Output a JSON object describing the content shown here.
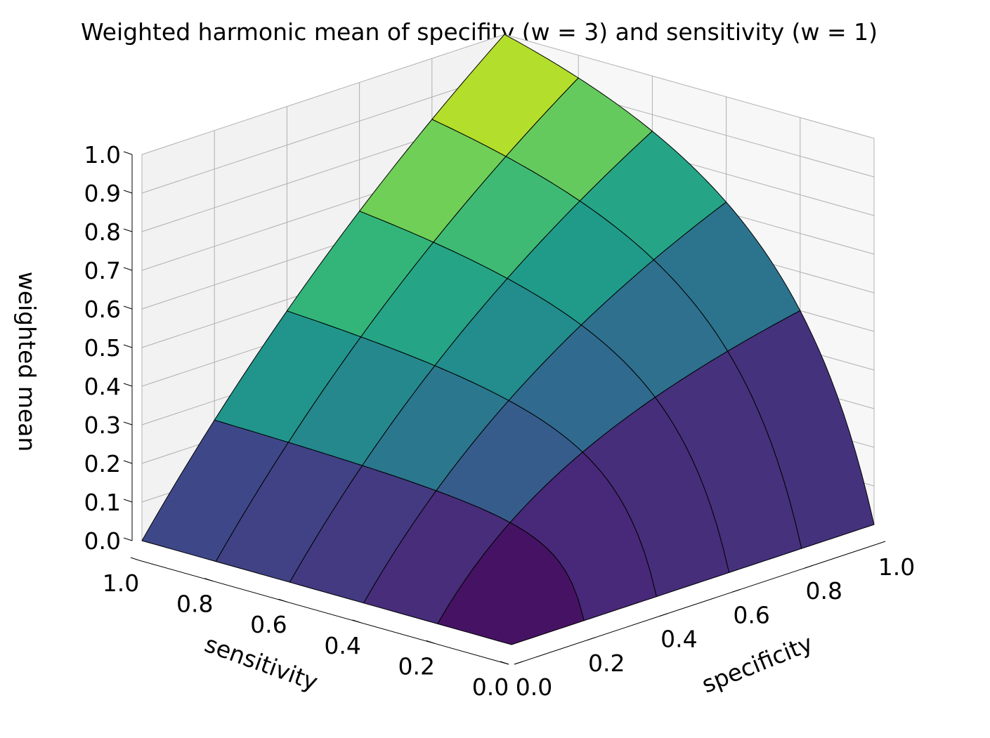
{
  "chart_data": {
    "type": "surface",
    "title": "Weighted harmonic mean of specifity (w = 3) and sensitivity (w = 1)",
    "xlabel": "specificity",
    "ylabel": "sensitivity",
    "zlabel": "weighted mean",
    "weights": {
      "specificity": 3,
      "sensitivity": 1
    },
    "xlim": [
      0,
      1
    ],
    "ylim": [
      0,
      1
    ],
    "zlim": [
      0,
      1
    ],
    "x_ticks": [
      "0.0",
      "0.2",
      "0.4",
      "0.6",
      "0.8",
      "1.0"
    ],
    "y_ticks": [
      "0.0",
      "0.2",
      "0.4",
      "0.6",
      "0.8",
      "1.0"
    ],
    "z_ticks": [
      "0.0",
      "0.1",
      "0.2",
      "0.3",
      "0.4",
      "0.5",
      "0.6",
      "0.7",
      "0.8",
      "0.9",
      "1.0"
    ],
    "grid": true,
    "colormap": "viridis",
    "grid_x": [
      0,
      0.2,
      0.4,
      0.6,
      0.8,
      1.0
    ],
    "grid_y": [
      0,
      0.2,
      0.4,
      0.6,
      0.8,
      1.0
    ],
    "values": [
      [
        0.0,
        0.0,
        0.0,
        0.0,
        0.0,
        0.0
      ],
      [
        0.0,
        0.2,
        0.25,
        0.273,
        0.286,
        0.294
      ],
      [
        0.0,
        0.308,
        0.4,
        0.444,
        0.471,
        0.488
      ],
      [
        0.0,
        0.375,
        0.5,
        0.6,
        0.667,
        0.714
      ],
      [
        0.0,
        0.421,
        0.571,
        0.667,
        0.8,
        0.857
      ],
      [
        0.0,
        0.455,
        0.625,
        0.769,
        0.889,
        1.0
      ]
    ]
  },
  "colors": {
    "viridis": [
      "#440154",
      "#482878",
      "#3e4989",
      "#31688e",
      "#26828e",
      "#1f9e89",
      "#35b779",
      "#6ece58",
      "#b5de2b",
      "#fde725"
    ],
    "pane": "#f2f2f2",
    "gridline": "#b0b0b0",
    "edge": "#000000"
  }
}
